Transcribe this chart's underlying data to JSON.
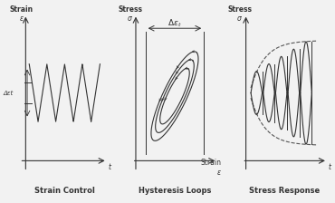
{
  "bg_color": "#f0f0f0",
  "panel_bg": "#f0f0f0",
  "line_color": "#333333",
  "title1": "Strain Control",
  "title2": "Hysteresis Loops",
  "title3": "Stress Response",
  "label_strain": "Strain\nε",
  "label_stress": "Stress\nσ",
  "label_t": "t",
  "label_delta_eps": "Δεt",
  "label_delta_eps2": "Δεt",
  "label_strain_x": "Strain\nε"
}
